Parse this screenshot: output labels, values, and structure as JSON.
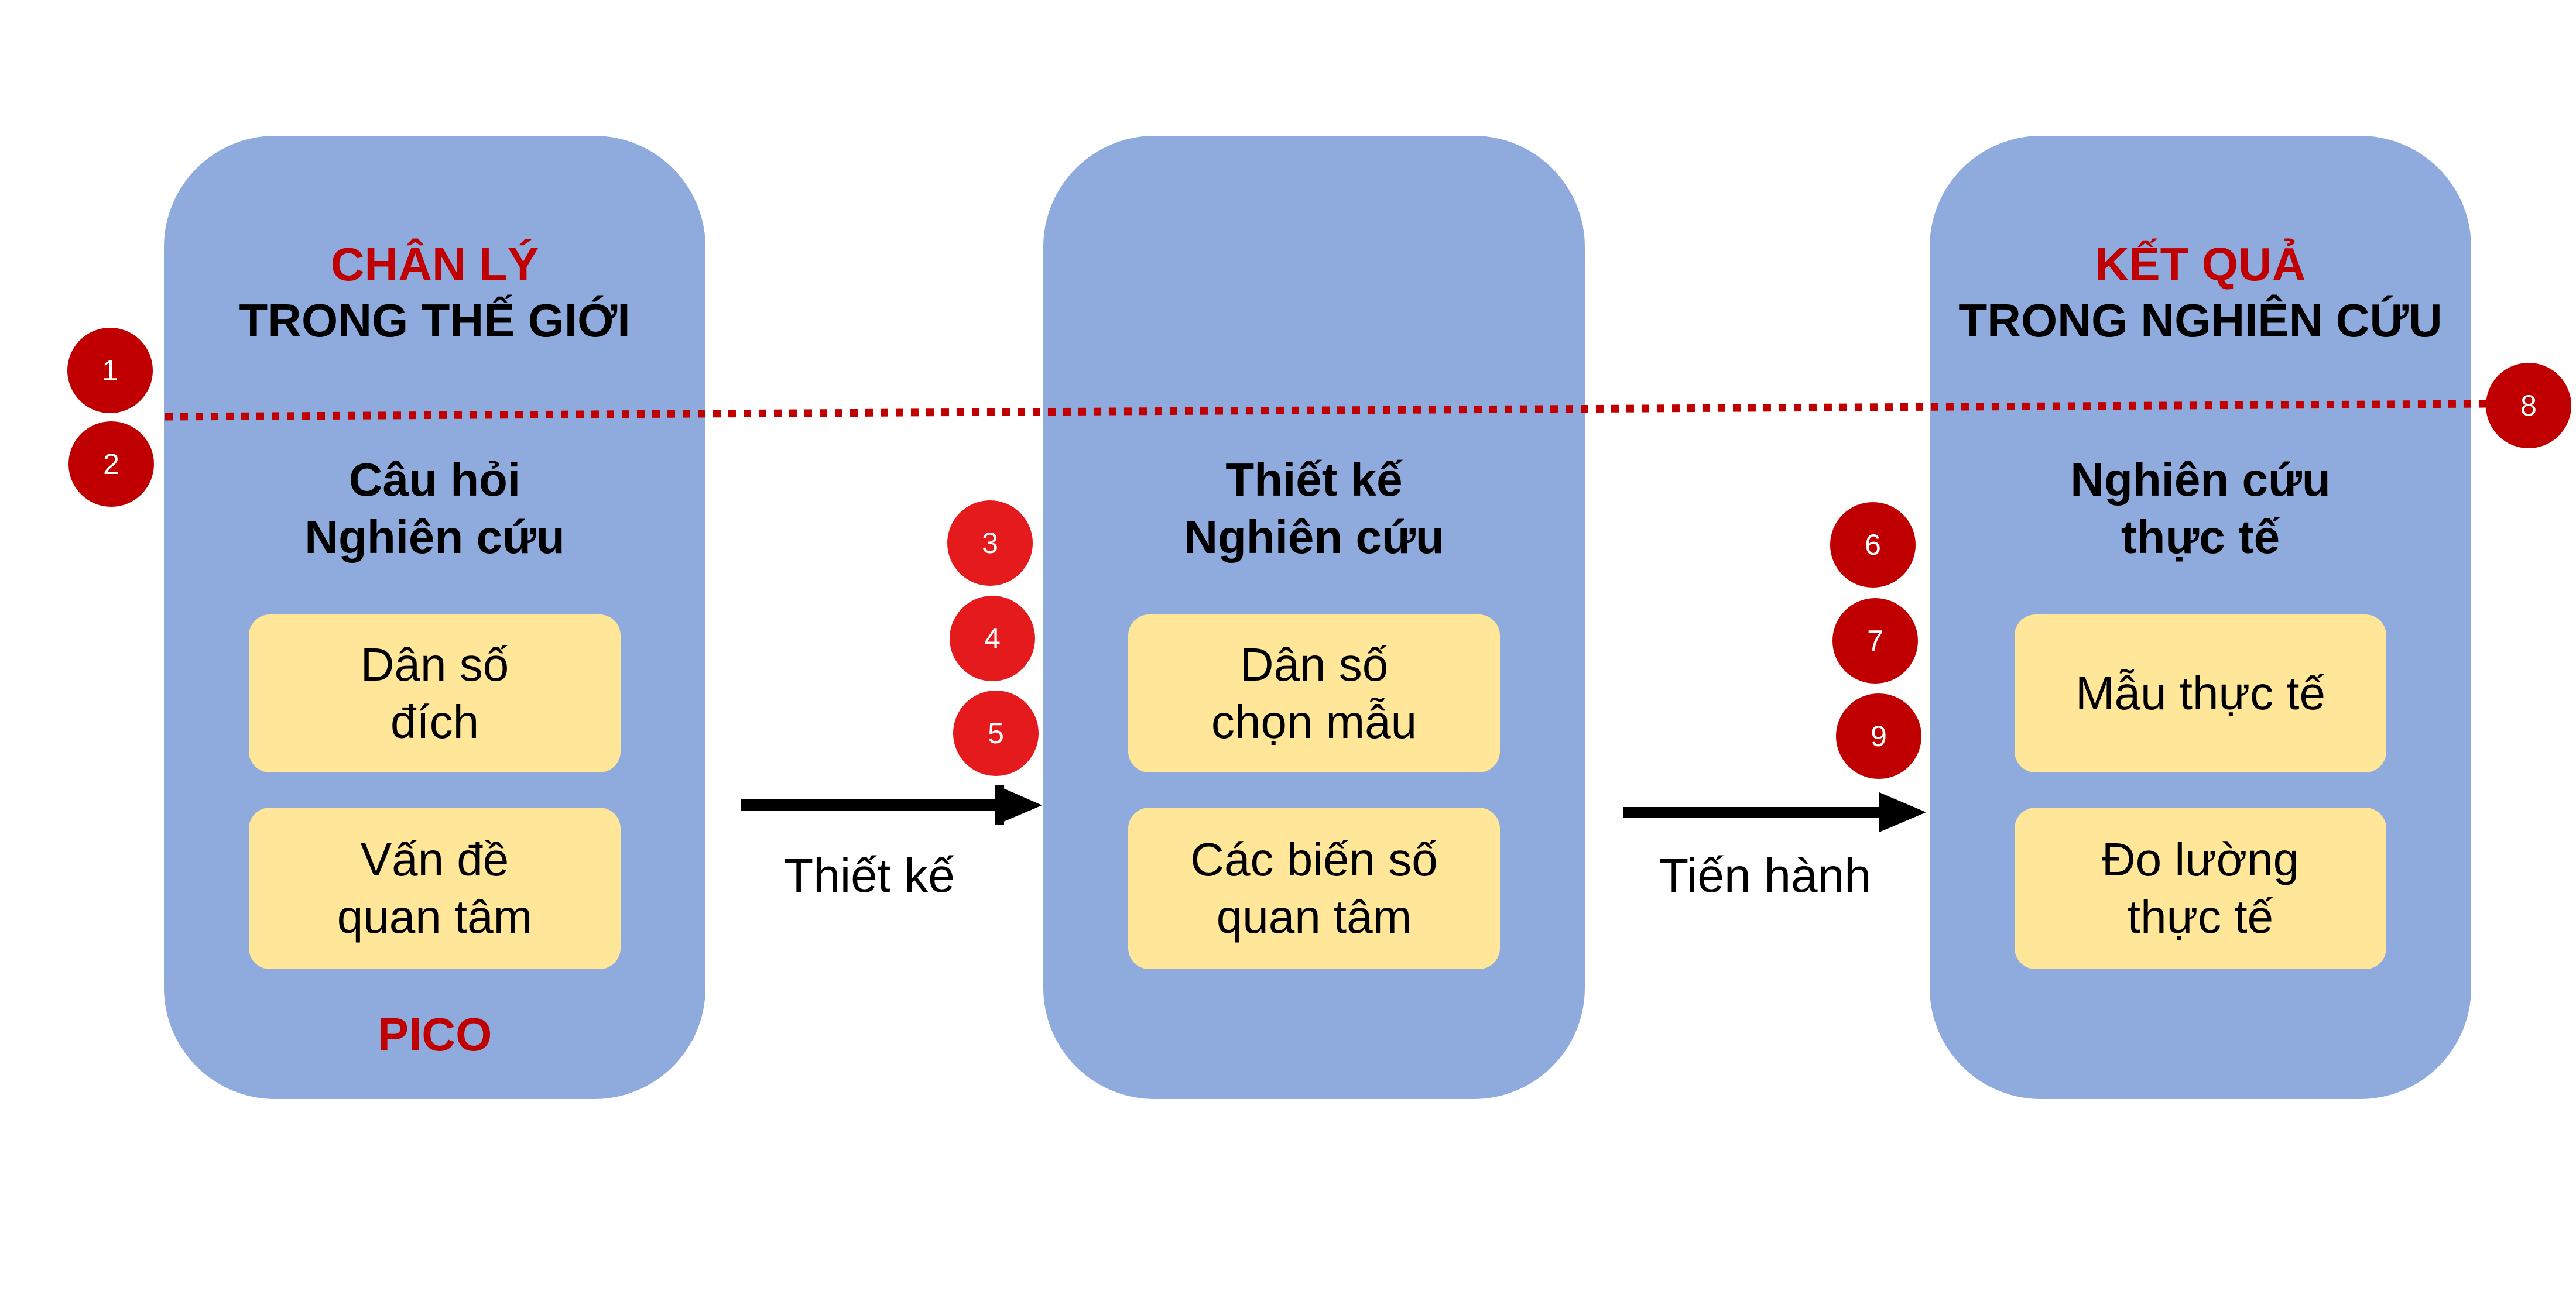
{
  "panels": [
    {
      "title_red": "CHÂN LÝ",
      "title_black": "TRONG THẾ GIỚI",
      "heading_line1": "Câu hỏi",
      "heading_line2": "Nghiên cứu",
      "boxes": [
        {
          "line1": "Dân số",
          "line2": "đích"
        },
        {
          "line1": "Vấn đề",
          "line2": "quan tâm"
        }
      ],
      "footer": "PICO"
    },
    {
      "heading_line1": "Thiết kế",
      "heading_line2": "Nghiên cứu",
      "boxes": [
        {
          "line1": "Dân số",
          "line2": "chọn mẫu"
        },
        {
          "line1": "Các biến số",
          "line2": "quan tâm"
        }
      ]
    },
    {
      "title_red": "KẾT QUẢ",
      "title_black": "TRONG NGHIÊN CỨU",
      "heading_line1": "Nghiên cứu",
      "heading_line2": "thực tế",
      "boxes": [
        {
          "line1": "Mẫu thực tế"
        },
        {
          "line1": "Đo lường",
          "line2": "thực tế"
        }
      ]
    }
  ],
  "arrows": [
    {
      "label": "Thiết kế"
    },
    {
      "label": "Tiến hành"
    }
  ],
  "markers": [
    "1",
    "2",
    "3",
    "4",
    "5",
    "6",
    "7",
    "9",
    "8"
  ],
  "colors": {
    "panel": "#8faadc",
    "box": "#ffe699",
    "accent_red": "#c00000",
    "marker_red": "#e41a1c",
    "dark_red": "#c00000"
  }
}
